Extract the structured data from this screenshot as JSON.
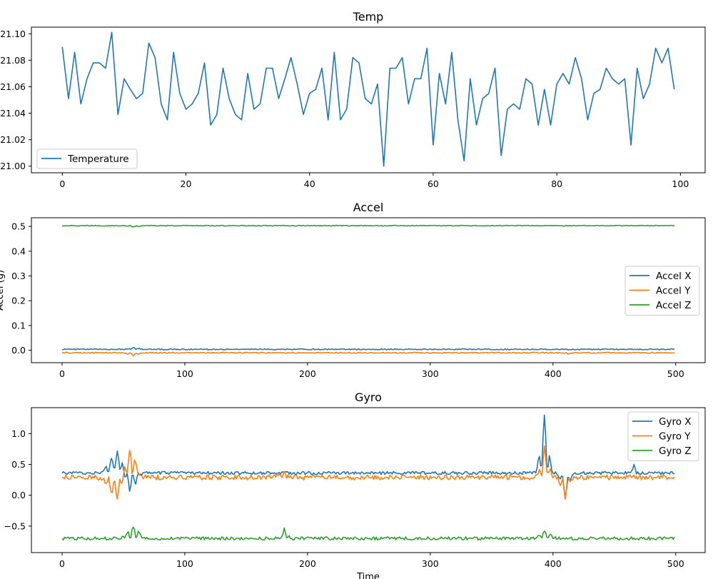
{
  "chart_data": [
    {
      "type": "line",
      "title": "Temp",
      "xlabel": "",
      "ylabel": "",
      "xlim": [
        -5,
        104
      ],
      "ylim": [
        20.995,
        21.105
      ],
      "xticks": [
        0,
        20,
        40,
        60,
        80,
        100
      ],
      "xtick_labels": [
        "0",
        "20",
        "40",
        "60",
        "80",
        "100"
      ],
      "yticks": [
        21.0,
        21.02,
        21.04,
        21.06,
        21.08,
        21.1
      ],
      "ytick_labels": [
        "21.00",
        "21.02",
        "21.04",
        "21.06",
        "21.08",
        "21.10"
      ],
      "legend_position": "lower-left",
      "grid": false,
      "series": [
        {
          "name": "Temperature",
          "color": "#1f77b4",
          "values": [
            21.09,
            21.051,
            21.086,
            21.047,
            21.066,
            21.078,
            21.078,
            21.074,
            21.101,
            21.039,
            21.066,
            21.058,
            21.051,
            21.055,
            21.093,
            21.082,
            21.047,
            21.035,
            21.086,
            21.055,
            21.043,
            21.047,
            21.055,
            21.078,
            21.031,
            21.039,
            21.074,
            21.051,
            21.039,
            21.035,
            21.07,
            21.043,
            21.047,
            21.074,
            21.074,
            21.051,
            21.066,
            21.082,
            21.062,
            21.039,
            21.055,
            21.058,
            21.074,
            21.035,
            21.086,
            21.035,
            21.043,
            21.082,
            21.078,
            21.051,
            21.047,
            21.062,
            21.0,
            21.074,
            21.074,
            21.082,
            21.047,
            21.066,
            21.066,
            21.089,
            21.016,
            21.07,
            21.047,
            21.086,
            21.035,
            21.004,
            21.066,
            21.031,
            21.051,
            21.055,
            21.074,
            21.008,
            21.043,
            21.047,
            21.043,
            21.066,
            21.062,
            21.031,
            21.058,
            21.031,
            21.062,
            21.07,
            21.062,
            21.082,
            21.066,
            21.035,
            21.055,
            21.058,
            21.074,
            21.066,
            21.062,
            21.066,
            21.016,
            21.074,
            21.051,
            21.062,
            21.089,
            21.078,
            21.089,
            21.058
          ]
        }
      ]
    },
    {
      "type": "line",
      "title": "Accel",
      "xlabel": "",
      "ylabel": "Accel (g)",
      "xlim": [
        -25,
        524
      ],
      "ylim": [
        -0.05,
        0.535
      ],
      "xticks": [
        0,
        100,
        200,
        300,
        400,
        500
      ],
      "xtick_labels": [
        "0",
        "100",
        "200",
        "300",
        "400",
        "500"
      ],
      "yticks": [
        0.0,
        0.1,
        0.2,
        0.3,
        0.4,
        0.5
      ],
      "ytick_labels": [
        "0.0",
        "0.1",
        "0.2",
        "0.3",
        "0.4",
        "0.5"
      ],
      "legend_position": "center-right",
      "grid": false,
      "samples": 500,
      "series": [
        {
          "name": "Accel X",
          "color": "#1f77b4",
          "base": 0.004,
          "noise": 0.002,
          "events": [
            [
              58,
              5,
              0.008
            ]
          ]
        },
        {
          "name": "Accel Y",
          "color": "#ff7f0e",
          "base": -0.01,
          "noise": 0.002,
          "events": [
            [
              58,
              5,
              -0.012
            ],
            [
              413,
              3,
              -0.006
            ]
          ]
        },
        {
          "name": "Accel Z",
          "color": "#2ca02c",
          "base": 0.503,
          "noise": 0.0015,
          "events": [
            [
              58,
              5,
              -0.006
            ]
          ]
        }
      ]
    },
    {
      "type": "line",
      "title": "Gyro",
      "xlabel": "Time",
      "ylabel": "",
      "xlim": [
        -25,
        524
      ],
      "ylim": [
        -0.93,
        1.42
      ],
      "xticks": [
        0,
        100,
        200,
        300,
        400,
        500
      ],
      "xtick_labels": [
        "0",
        "100",
        "200",
        "300",
        "400",
        "500"
      ],
      "yticks": [
        -0.5,
        0.0,
        0.5,
        1.0
      ],
      "ytick_labels": [
        "−0.5",
        "0.0",
        "0.5",
        "1.0"
      ],
      "legend_position": "upper-right",
      "grid": false,
      "samples": 500,
      "series": [
        {
          "name": "Gyro X",
          "color": "#1f77b4",
          "base": 0.36,
          "noise": 0.025,
          "events": [
            [
              45,
              8,
              0.38
            ],
            [
              55,
              6,
              -0.35
            ],
            [
              393,
              4,
              0.95
            ],
            [
              410,
              4,
              -0.42
            ],
            [
              466,
              2,
              0.15
            ]
          ]
        },
        {
          "name": "Gyro Y",
          "color": "#ff7f0e",
          "base": 0.29,
          "noise": 0.04,
          "events": [
            [
              45,
              8,
              -0.38
            ],
            [
              55,
              6,
              0.55
            ],
            [
              181,
              4,
              0.12
            ],
            [
              393,
              4,
              0.48
            ],
            [
              410,
              4,
              -0.35
            ]
          ]
        },
        {
          "name": "Gyro Z",
          "color": "#2ca02c",
          "base": -0.7,
          "noise": 0.025,
          "events": [
            [
              58,
              6,
              0.2
            ],
            [
              181,
              3,
              0.15
            ],
            [
              393,
              6,
              0.12
            ]
          ]
        }
      ]
    }
  ]
}
